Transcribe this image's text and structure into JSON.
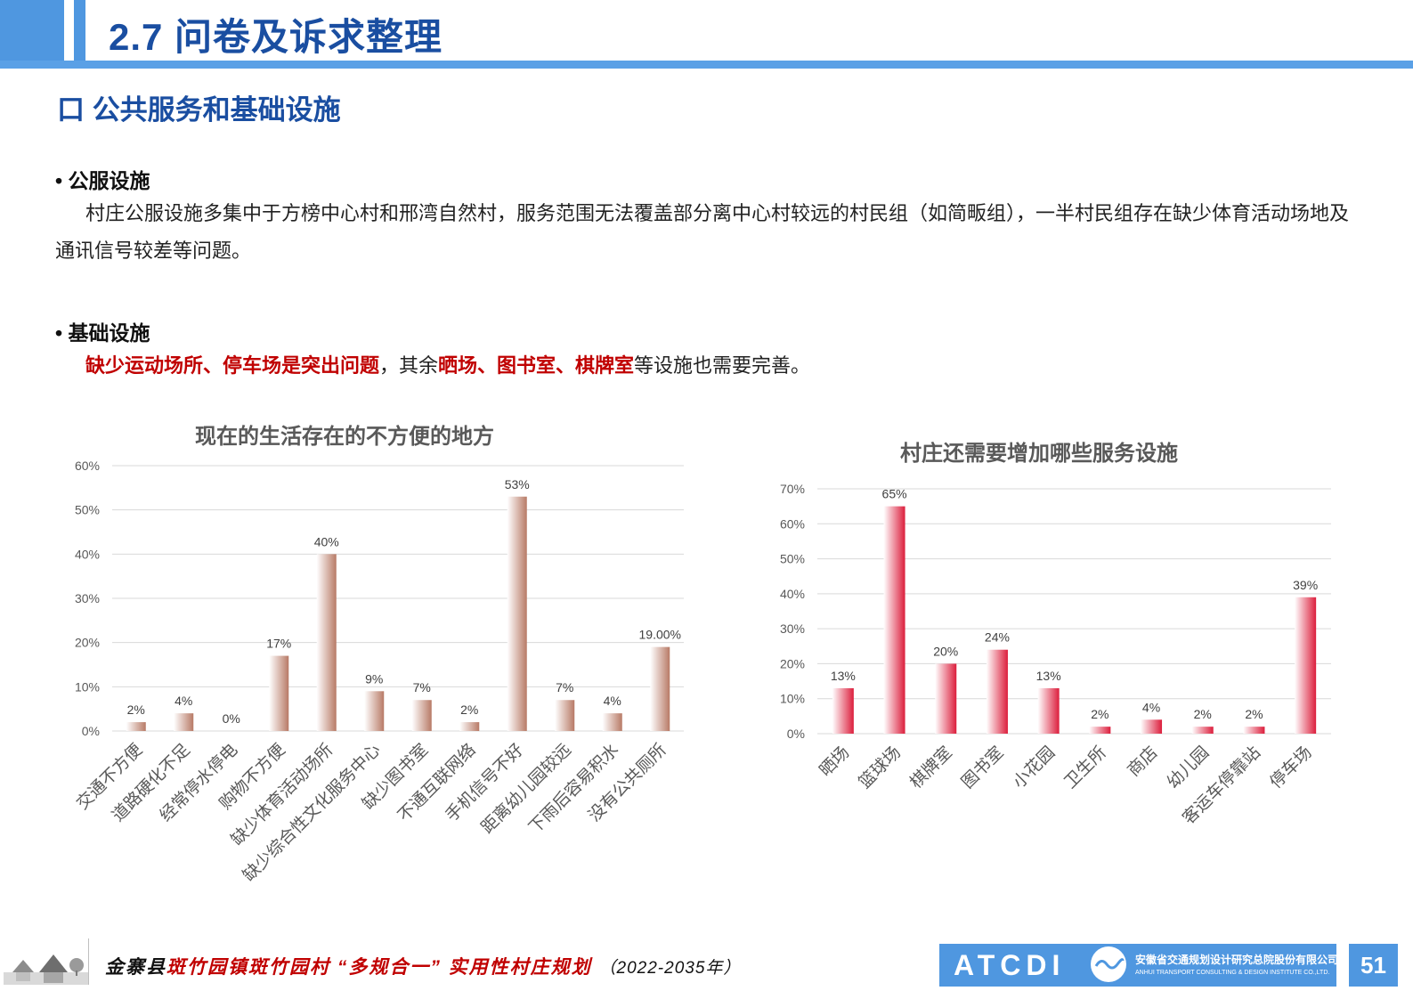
{
  "header": {
    "title": "2.7 问卷及诉求整理"
  },
  "section": {
    "title": "口 公共服务和基础设施"
  },
  "public": {
    "bullet": "• 公服设施",
    "text": "村庄公服设施多集中于方榜中心村和邢湾自然村，服务范围无法覆盖部分离中心村较远的村民组（如简畈组），一半村民组存在缺少体育活动场地及通讯信号较差等问题。"
  },
  "infra": {
    "bullet": "• 基础设施",
    "red1": "缺少运动场所、停车场是突出问题",
    "comma": "，其余",
    "red2": "晒场、图书室、棋牌室",
    "tail": "等设施也需要完善。"
  },
  "colors": {
    "accent": "#4f97e0",
    "title_blue": "#1a4ea1",
    "emphasis_red": "#c00000"
  },
  "chart_data": [
    {
      "type": "bar",
      "title": "现在的生活存在的不方便的地方",
      "categories": [
        "交通不方便",
        "道路硬化不足",
        "经常停水停电",
        "购物不方便",
        "缺少体育活动场所",
        "缺少综合性文化服务中心",
        "缺少图书室",
        "不通互联网络",
        "手机信号不好",
        "距离幼儿园较远",
        "下雨后容易积水",
        "没有公共厕所"
      ],
      "values": [
        2,
        4,
        0,
        17,
        40,
        9,
        7,
        2,
        53,
        7,
        4,
        19
      ],
      "labels": [
        "2%",
        "4%",
        "0%",
        "17%",
        "40%",
        "9%",
        "7%",
        "2%",
        "53%",
        "7%",
        "4%",
        "19.00%"
      ],
      "yticks": [
        "0%",
        "10%",
        "20%",
        "30%",
        "40%",
        "50%",
        "60%"
      ],
      "ylim": [
        0,
        60
      ],
      "grid": true,
      "color": "#b87a66"
    },
    {
      "type": "bar",
      "title": "村庄还需要增加哪些服务设施",
      "categories": [
        "晒场",
        "篮球场",
        "棋牌室",
        "图书室",
        "小花园",
        "卫生所",
        "商店",
        "幼儿园",
        "客运车停靠站",
        "停车场"
      ],
      "values": [
        13,
        65,
        20,
        24,
        13,
        2,
        4,
        2,
        2,
        39
      ],
      "labels": [
        "13%",
        "65%",
        "20%",
        "24%",
        "13%",
        "2%",
        "4%",
        "2%",
        "2%",
        "39%"
      ],
      "yticks": [
        "0%",
        "10%",
        "20%",
        "30%",
        "40%",
        "50%",
        "60%",
        "70%"
      ],
      "ylim": [
        0,
        70
      ],
      "grid": true,
      "color": "#dc1e3c"
    }
  ],
  "footer": {
    "county": "金寨县",
    "project": "斑竹园镇斑竹园村",
    "quote": "“多规合一”",
    "plan": "实用性村庄规划",
    "years": "（2022-2035年）",
    "brand": "ATCDI",
    "org": "安徽省交通规划设计研究总院股份有限公司",
    "org_en": "ANHUI TRANSPORT CONSULTING & DESIGN INSTITUTE CO.,LTD.",
    "page": "51"
  }
}
